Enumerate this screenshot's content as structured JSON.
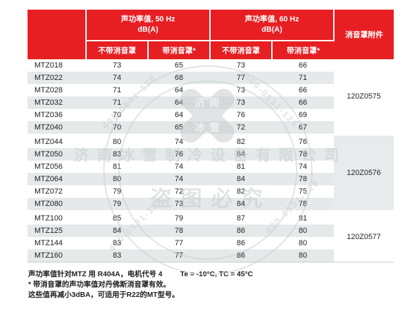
{
  "table": {
    "columns": {
      "group50": {
        "title": "声功率值, 50 Hz",
        "unit": "dB(A)"
      },
      "group60": {
        "title": "声功率值, 60 Hz",
        "unit": "dB(A)"
      },
      "attachment_header": "消音罩附件",
      "sub_no_hood": "不带消音罩",
      "sub_with_hood": "带消音罩*"
    },
    "groups": [
      {
        "attachment": "120Z0575",
        "attachment_shaded": false,
        "rows": [
          [
            "MTZ018",
            73,
            65,
            73,
            66
          ],
          [
            "MTZ022",
            74,
            68,
            77,
            71
          ],
          [
            "MTZ028",
            71,
            64,
            73,
            66
          ],
          [
            "MTZ032",
            71,
            64,
            73,
            66
          ],
          [
            "MTZ036",
            70,
            64,
            76,
            69
          ],
          [
            "MTZ040",
            70,
            65,
            72,
            67
          ]
        ]
      },
      {
        "attachment": "120Z0576",
        "attachment_shaded": true,
        "rows": [
          [
            "MTZ044",
            80,
            74,
            82,
            76
          ],
          [
            "MTZ050",
            83,
            76,
            84,
            78
          ],
          [
            "MTZ056",
            81,
            74,
            81,
            74
          ],
          [
            "MTZ064",
            80,
            74,
            84,
            78
          ],
          [
            "MTZ072",
            79,
            72,
            82,
            75
          ],
          [
            "MTZ080",
            79,
            73,
            84,
            78
          ]
        ]
      },
      {
        "attachment": "120Z0577",
        "attachment_shaded": false,
        "rows": [
          [
            "MTZ100",
            85,
            79,
            87,
            81
          ],
          [
            "MTZ125",
            84,
            78,
            86,
            80
          ],
          [
            "MTZ144",
            83,
            77,
            86,
            80
          ],
          [
            "MTZ160",
            83,
            77,
            86,
            80
          ]
        ]
      }
    ]
  },
  "footnotes": {
    "line1_left": "声功率值针对MTZ 用 R404A，电机代号 4",
    "line1_right": "Te = -10°C, TC = 45°C",
    "line2": "* 带消音罩的声功率值对丹佛斯消音罩有效。",
    "line3": "这些值再减小3dBA，可适用于R22的MT型号。"
  },
  "watermark": {
    "company": "济南冰雪制冷设备有限公司",
    "warning": "盗图必究",
    "phone": "400-0531-128",
    "logo_top": "济南",
    "logo_bottom": "冰雪"
  },
  "colors": {
    "header_red": "#e71f23",
    "stripe": "#e5e9ea",
    "attachment_shaded": "#e7ebec",
    "watermark_gray": "#c5cacc"
  }
}
